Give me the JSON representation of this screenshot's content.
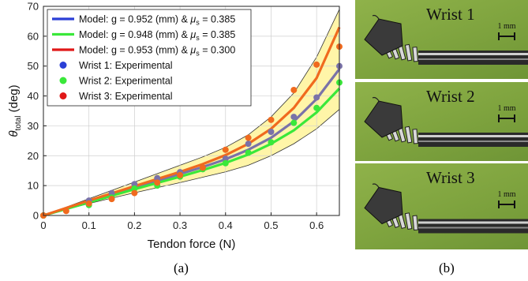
{
  "chart_data": {
    "type": "line",
    "xlabel": "Tendon force (N)",
    "ylabel_main": "θ",
    "ylabel_sub": "total",
    "ylabel_unit": " (deg)",
    "xlim": [
      0,
      0.65
    ],
    "ylim": [
      0,
      70
    ],
    "xticks": [
      0,
      0.1,
      0.2,
      0.3,
      0.4,
      0.5,
      0.6
    ],
    "xtick_labels": [
      "0",
      "0.1",
      "0.2",
      "0.3",
      "0.4",
      "0.5",
      "0.6"
    ],
    "yticks": [
      0,
      10,
      20,
      30,
      40,
      50,
      60,
      70
    ],
    "ytick_labels": [
      "0",
      "10",
      "20",
      "30",
      "40",
      "50",
      "60",
      "70"
    ],
    "grid": true,
    "legend_position": "top-left",
    "band": {
      "color": "#fff5a8",
      "x": [
        0,
        0.05,
        0.1,
        0.15,
        0.2,
        0.25,
        0.3,
        0.35,
        0.4,
        0.45,
        0.5,
        0.55,
        0.6,
        0.65
      ],
      "upper": [
        0,
        2.8,
        5.6,
        8.4,
        11.2,
        14.0,
        16.8,
        19.6,
        22.8,
        27.0,
        33.0,
        41.0,
        53.0,
        69.0
      ],
      "lower": [
        0,
        2.0,
        4.0,
        5.8,
        7.6,
        9.3,
        11.0,
        12.8,
        14.6,
        16.8,
        20.0,
        24.0,
        29.0,
        35.5
      ]
    },
    "series": [
      {
        "kind": "model",
        "color": "#2b3fd6",
        "legend_prefix": "Model: g = 0.952 (mm) & ",
        "mu": "μ",
        "mu_sub": "s",
        "legend_suffix": " = 0.385",
        "x": [
          0,
          0.05,
          0.1,
          0.15,
          0.2,
          0.25,
          0.3,
          0.35,
          0.4,
          0.45,
          0.5,
          0.55,
          0.6,
          0.65
        ],
        "y": [
          0,
          2.4,
          4.7,
          7.0,
          9.3,
          11.6,
          13.9,
          16.2,
          18.8,
          22.0,
          26.0,
          31.5,
          39.0,
          49.0
        ],
        "draw_color": "#7a72a8"
      },
      {
        "kind": "model",
        "color": "#3ae83a",
        "legend_prefix": "Model: g = 0.948 (mm) & ",
        "mu": "μ",
        "mu_sub": "s",
        "legend_suffix": " = 0.385",
        "x": [
          0,
          0.05,
          0.1,
          0.15,
          0.2,
          0.25,
          0.3,
          0.35,
          0.4,
          0.45,
          0.5,
          0.55,
          0.6,
          0.65
        ],
        "y": [
          0,
          2.2,
          4.4,
          6.6,
          8.8,
          10.9,
          13.0,
          15.2,
          17.6,
          20.4,
          24.0,
          28.5,
          34.5,
          42.5
        ],
        "draw_color": "#3ae83a"
      },
      {
        "kind": "model",
        "color": "#e01818",
        "legend_prefix": "Model: g = 0.953 (mm) & ",
        "mu": "μ",
        "mu_sub": "s",
        "legend_suffix": " = 0.300",
        "x": [
          0,
          0.05,
          0.1,
          0.15,
          0.2,
          0.25,
          0.3,
          0.35,
          0.4,
          0.45,
          0.5,
          0.55,
          0.6,
          0.65
        ],
        "y": [
          0,
          2.5,
          5.0,
          7.4,
          9.8,
          12.2,
          14.6,
          17.2,
          20.2,
          24.0,
          29.0,
          36.0,
          46.0,
          63.0
        ],
        "draw_color": "#f06a1e"
      },
      {
        "kind": "points",
        "color": "#2b3fd6",
        "legend": "Wrist 1: Experimental",
        "draw_color": "#7a72a8",
        "x": [
          0,
          0.1,
          0.15,
          0.2,
          0.25,
          0.3,
          0.35,
          0.4,
          0.45,
          0.5,
          0.55,
          0.6,
          0.65
        ],
        "y": [
          0,
          5.0,
          7.5,
          10.5,
          12.5,
          14.5,
          16.0,
          19.0,
          24.0,
          28.0,
          33.0,
          39.5,
          50.0
        ]
      },
      {
        "kind": "points",
        "color": "#3ae83a",
        "legend": "Wrist 2: Experimental",
        "draw_color": "#3ae83a",
        "x": [
          0,
          0.1,
          0.15,
          0.2,
          0.25,
          0.3,
          0.35,
          0.4,
          0.45,
          0.5,
          0.55,
          0.6,
          0.65
        ],
        "y": [
          0,
          3.5,
          6.0,
          9.0,
          10.0,
          13.0,
          15.5,
          17.5,
          21.0,
          24.5,
          31.0,
          36.0,
          44.5
        ]
      },
      {
        "kind": "points",
        "color": "#e01818",
        "legend": "Wrist 3: Experimental",
        "draw_color": "#f06a1e",
        "x": [
          0,
          0.05,
          0.1,
          0.15,
          0.2,
          0.25,
          0.3,
          0.35,
          0.4,
          0.45,
          0.5,
          0.55,
          0.6,
          0.65
        ],
        "y": [
          0,
          1.5,
          4.0,
          5.5,
          7.5,
          11.0,
          13.5,
          16.0,
          22.0,
          26.0,
          32.0,
          42.0,
          50.5,
          56.5
        ],
        "legend_draw_color": "#e01818"
      }
    ]
  },
  "captions": {
    "a": "(a)",
    "b": "(b)"
  },
  "photos": [
    {
      "label": "Wrist 1",
      "scale": "1 mm"
    },
    {
      "label": "Wrist 2",
      "scale": "1 mm"
    },
    {
      "label": "Wrist 3",
      "scale": "1 mm"
    }
  ]
}
